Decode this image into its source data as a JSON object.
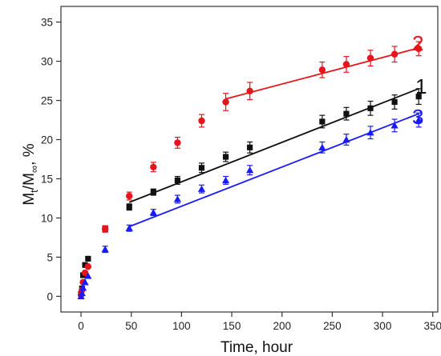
{
  "chart_data": {
    "type": "scatter",
    "title": "",
    "xlabel": "Time, hour",
    "ylabel_parts": {
      "m1": "M",
      "sub1": "t",
      "mid": "/M",
      "sub2": "∞",
      "tail": ", %"
    },
    "xlim": [
      -20,
      355
    ],
    "ylim": [
      -2,
      37
    ],
    "xticks": [
      0,
      50,
      100,
      150,
      200,
      250,
      300,
      350
    ],
    "yticks": [
      0,
      5,
      10,
      15,
      20,
      25,
      30,
      35
    ],
    "grid": false,
    "legend": "series labels placed at right end of each series",
    "series": [
      {
        "name": "1",
        "color": "#111111",
        "marker": "square",
        "x": [
          0,
          1,
          2,
          4,
          7,
          24,
          48,
          72,
          96,
          120,
          144,
          168,
          240,
          264,
          288,
          312,
          336
        ],
        "y": [
          0.3,
          1.0,
          2.7,
          4.0,
          4.8,
          8.6,
          11.4,
          13.3,
          14.8,
          16.4,
          17.8,
          19.0,
          22.3,
          23.3,
          24.0,
          24.8,
          25.5
        ],
        "err": [
          0.3,
          0.3,
          0.3,
          0.3,
          0.3,
          0.4,
          0.4,
          0.4,
          0.5,
          0.6,
          0.6,
          0.7,
          0.8,
          0.8,
          0.9,
          0.9,
          1.0
        ],
        "fit": {
          "x": [
            48,
            336
          ],
          "y": [
            12.0,
            26.5
          ]
        }
      },
      {
        "name": "2",
        "color": "#e8141b",
        "marker": "circle",
        "x": [
          0,
          1,
          2,
          4,
          7,
          24,
          48,
          72,
          96,
          120,
          144,
          168,
          240,
          264,
          288,
          312,
          336
        ],
        "y": [
          0.2,
          0.8,
          1.8,
          3.0,
          3.8,
          8.6,
          12.8,
          16.5,
          19.6,
          22.4,
          24.8,
          26.2,
          28.9,
          29.6,
          30.4,
          30.9,
          31.6
        ],
        "err": [
          0.3,
          0.3,
          0.3,
          0.3,
          0.3,
          0.4,
          0.5,
          0.6,
          0.7,
          0.8,
          1.1,
          1.1,
          1.0,
          1.0,
          1.0,
          1.0,
          0.9
        ],
        "fit": {
          "x": [
            144,
            336
          ],
          "y": [
            25.2,
            31.7
          ]
        }
      },
      {
        "name": "3",
        "color": "#1a1aff",
        "marker": "triangle",
        "x": [
          0,
          1,
          2,
          4,
          7,
          24,
          48,
          72,
          96,
          120,
          144,
          168,
          240,
          264,
          288,
          312,
          336
        ],
        "y": [
          0.0,
          0.4,
          1.1,
          1.8,
          2.6,
          6.0,
          8.7,
          10.7,
          12.4,
          13.7,
          14.8,
          16.1,
          19.0,
          20.0,
          20.9,
          21.8,
          22.5
        ],
        "err": [
          0.3,
          0.3,
          0.3,
          0.3,
          0.3,
          0.4,
          0.4,
          0.4,
          0.5,
          0.5,
          0.5,
          0.6,
          0.7,
          0.7,
          0.8,
          0.8,
          0.9
        ],
        "fit": {
          "x": [
            48,
            336
          ],
          "y": [
            8.9,
            23.3
          ]
        }
      }
    ]
  }
}
